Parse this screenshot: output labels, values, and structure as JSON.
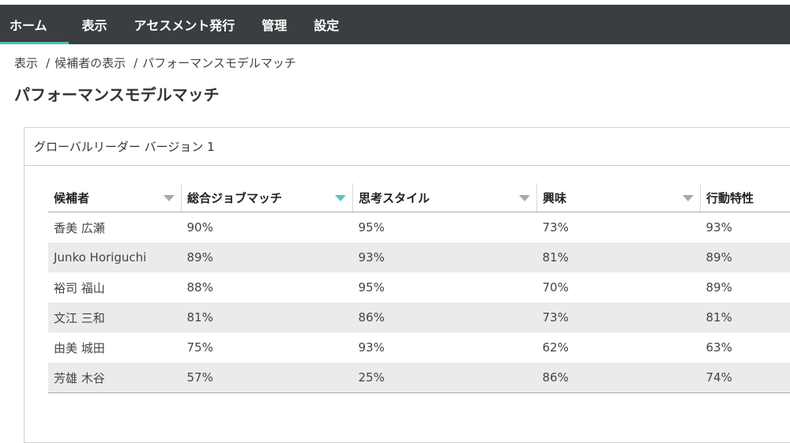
{
  "nav": {
    "items": [
      {
        "label": "ホーム"
      },
      {
        "label": "表示"
      },
      {
        "label": "アセスメント発行"
      },
      {
        "label": "管理"
      },
      {
        "label": "設定"
      }
    ]
  },
  "breadcrumb": {
    "items": [
      "表示",
      "候補者の表示",
      "パフォーマンスモデルマッチ"
    ],
    "separator": "/"
  },
  "page": {
    "title": "パフォーマンスモデルマッチ"
  },
  "panel": {
    "title": "グローバルリーダー バージョン 1"
  },
  "table": {
    "columns": [
      "候補者",
      "総合ジョブマッチ",
      "思考スタイル",
      "興味",
      "行動特性"
    ],
    "sorted_column": "総合ジョブマッチ",
    "rows": [
      [
        "香美 広瀬",
        "90%",
        "95%",
        "73%",
        "93%"
      ],
      [
        "Junko Horiguchi",
        "89%",
        "93%",
        "81%",
        "89%"
      ],
      [
        "裕司 福山",
        "88%",
        "95%",
        "70%",
        "89%"
      ],
      [
        "文江 三和",
        "81%",
        "86%",
        "73%",
        "81%"
      ],
      [
        "由美 城田",
        "75%",
        "93%",
        "62%",
        "63%"
      ],
      [
        "芳雄 木谷",
        "57%",
        "25%",
        "86%",
        "74%"
      ]
    ]
  },
  "colors": {
    "topbar": "#3a3e40",
    "accent": "#4cbcb8",
    "row_alt": "#ebebec"
  }
}
